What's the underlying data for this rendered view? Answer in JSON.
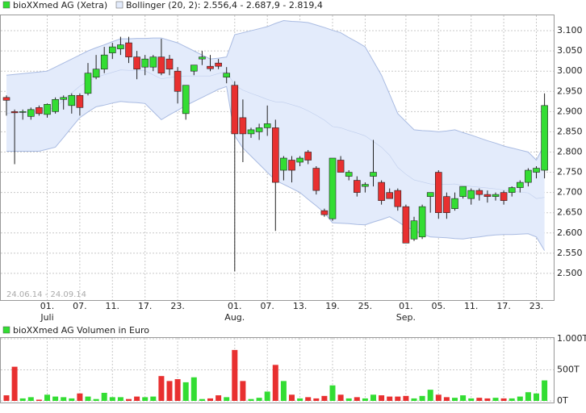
{
  "chart_data": [
    {
      "type": "candlestick",
      "date_range": "24.06.14 - 24.09.14",
      "categories": [
        null,
        null,
        null,
        null,
        null,
        "01.",
        null,
        null,
        null,
        "07.",
        null,
        null,
        null,
        "11.",
        null,
        null,
        null,
        "17.",
        null,
        null,
        null,
        "23.",
        null,
        null,
        null,
        null,
        null,
        null,
        "01.",
        null,
        null,
        null,
        "07.",
        null,
        null,
        null,
        "13.",
        null,
        null,
        null,
        "19.",
        null,
        null,
        null,
        "25.",
        null,
        null,
        null,
        null,
        "01.",
        null,
        null,
        null,
        "05.",
        null,
        null,
        null,
        "11.",
        null,
        null,
        null,
        "17.",
        null,
        null,
        null,
        "23.",
        null
      ],
      "months": [
        null,
        null,
        null,
        null,
        null,
        "Juli",
        null,
        null,
        null,
        null,
        null,
        null,
        null,
        null,
        null,
        null,
        null,
        null,
        null,
        null,
        null,
        null,
        null,
        null,
        null,
        null,
        null,
        null,
        "Aug.",
        null,
        null,
        null,
        null,
        null,
        null,
        null,
        null,
        null,
        null,
        null,
        null,
        null,
        null,
        null,
        null,
        null,
        null,
        null,
        null,
        "Sep.",
        null,
        null,
        null,
        null,
        null,
        null,
        null,
        null,
        null,
        null,
        null,
        null,
        null,
        null,
        null,
        null,
        null
      ],
      "series": [
        {
          "name": "bioXXmed AG (Xetra)",
          "color": "#33dd33",
          "down_color": "#e83030",
          "open": [
            2935,
            2900,
            2898,
            2888,
            2910,
            2893,
            2900,
            2930,
            2915,
            2940,
            2945,
            2985,
            3005,
            3045,
            3055,
            3070,
            3035,
            3010,
            3010,
            3035,
            3030,
            3000,
            2895,
            3000,
            3030,
            3012,
            3020,
            2985,
            2965,
            2885,
            2845,
            2850,
            2860,
            2860,
            2755,
            2780,
            2775,
            2800,
            2760,
            2655,
            2635,
            2780,
            2740,
            2730,
            2715,
            2740,
            2725,
            2700,
            2705,
            2665,
            2585,
            2590,
            2690,
            2750,
            2690,
            2660,
            2690,
            2685,
            2705,
            2695,
            2690,
            2700,
            2700,
            2712,
            2725,
            2750,
            2755
          ],
          "high": [
            2940,
            2905,
            2905,
            2910,
            2915,
            2920,
            2935,
            2940,
            2945,
            2945,
            3020,
            3040,
            3060,
            3070,
            3085,
            3085,
            3050,
            3040,
            3040,
            3080,
            3040,
            3010,
            2965,
            3015,
            3050,
            3040,
            3030,
            3010,
            2975,
            2930,
            2860,
            2870,
            2915,
            2880,
            2790,
            2790,
            2790,
            2805,
            2765,
            2660,
            2785,
            2790,
            2755,
            2740,
            2725,
            2830,
            2730,
            2710,
            2710,
            2670,
            2640,
            2670,
            2700,
            2755,
            2700,
            2700,
            2715,
            2710,
            2710,
            2705,
            2700,
            2705,
            2715,
            2730,
            2760,
            2765,
            2945
          ],
          "low": [
            2890,
            2770,
            2880,
            2880,
            2890,
            2885,
            2895,
            2905,
            2895,
            2890,
            2940,
            2980,
            2995,
            3030,
            3040,
            3020,
            2980,
            2990,
            3000,
            2990,
            2990,
            2920,
            2880,
            2990,
            3015,
            3000,
            3005,
            2970,
            2505,
            2775,
            2835,
            2830,
            2840,
            2605,
            2730,
            2725,
            2765,
            2770,
            2695,
            2640,
            2630,
            2750,
            2730,
            2690,
            2700,
            2715,
            2670,
            2685,
            2655,
            2575,
            2580,
            2585,
            2650,
            2635,
            2635,
            2655,
            2685,
            2670,
            2680,
            2675,
            2680,
            2670,
            2690,
            2700,
            2715,
            2735,
            2735
          ],
          "close": [
            2928,
            2897,
            2900,
            2905,
            2895,
            2918,
            2930,
            2935,
            2940,
            2910,
            2995,
            3005,
            3040,
            3060,
            3065,
            3035,
            3005,
            3030,
            3035,
            2995,
            3005,
            2950,
            2965,
            3015,
            3035,
            3006,
            3012,
            2995,
            2845,
            2845,
            2855,
            2860,
            2870,
            2725,
            2785,
            2755,
            2785,
            2780,
            2705,
            2645,
            2785,
            2750,
            2750,
            2700,
            2720,
            2750,
            2680,
            2685,
            2665,
            2575,
            2630,
            2665,
            2700,
            2650,
            2650,
            2685,
            2715,
            2705,
            2695,
            2690,
            2695,
            2680,
            2712,
            2725,
            2755,
            2760,
            2915
          ]
        }
      ],
      "bands": {
        "name": "Bollinger (20, 2): 2.556,4 - 2.687,9 - 2.819,4",
        "color": "#e3ebfb",
        "line_color": "#a9bbe2",
        "upper": [
          2990,
          2992,
          2994,
          2996,
          2998,
          3000,
          3010,
          3020,
          3030,
          3040,
          3050,
          3058,
          3065,
          3073,
          3080,
          3080,
          3081,
          3081,
          3082,
          3082,
          3076,
          3070,
          3060,
          3050,
          3040,
          3030,
          3032,
          3035,
          3090,
          3095,
          3100,
          3105,
          3110,
          3118,
          3125,
          3123,
          3122,
          3120,
          3114,
          3108,
          3101,
          3095,
          3083,
          3072,
          3060,
          3025,
          2990,
          2943,
          2895,
          2875,
          2855,
          2853,
          2852,
          2850,
          2852,
          2855,
          2848,
          2842,
          2835,
          2828,
          2822,
          2815,
          2810,
          2805,
          2800,
          2780,
          2819.4
        ],
        "middle": [
          2896,
          2897,
          2898,
          2899,
          2900,
          2904,
          2911,
          2928,
          2946,
          2963,
          2975,
          2985,
          2991,
          2997,
          3003,
          3002,
          3002,
          3001,
          2991,
          2981,
          2984,
          2987,
          2988,
          2988,
          2988,
          2988,
          2994,
          2999,
          2965,
          2953,
          2945,
          2938,
          2930,
          2924,
          2923,
          2917,
          2911,
          2902,
          2891,
          2879,
          2863,
          2860,
          2853,
          2847,
          2840,
          2826,
          2812,
          2792,
          2762,
          2745,
          2731,
          2726,
          2721,
          2720,
          2720,
          2721,
          2717,
          2715,
          2713,
          2711,
          2709,
          2706,
          2703,
          2701,
          2699,
          2685,
          2687.9
        ],
        "lower": [
          2802,
          2802,
          2802,
          2802,
          2802,
          2807,
          2812,
          2836,
          2861,
          2885,
          2899,
          2912,
          2916,
          2921,
          2925,
          2923,
          2922,
          2920,
          2900,
          2880,
          2892,
          2903,
          2915,
          2925,
          2935,
          2945,
          2955,
          2962,
          2840,
          2810,
          2790,
          2770,
          2750,
          2730,
          2720,
          2710,
          2700,
          2683,
          2667,
          2650,
          2625,
          2624,
          2623,
          2621,
          2620,
          2627,
          2633,
          2640,
          2628,
          2615,
          2607,
          2598,
          2590,
          2589,
          2588,
          2586,
          2585,
          2588,
          2590,
          2593,
          2595,
          2596,
          2596,
          2597,
          2598,
          2590,
          2556.4
        ]
      },
      "ylim": [
        2434,
        3140
      ],
      "yticks": [
        {
          "value": 2500,
          "label": "2.500"
        },
        {
          "value": 2550,
          "label": "2.550"
        },
        {
          "value": 2600,
          "label": "2.600"
        },
        {
          "value": 2650,
          "label": "2.650"
        },
        {
          "value": 2700,
          "label": "2.700"
        },
        {
          "value": 2750,
          "label": "2.750"
        },
        {
          "value": 2800,
          "label": "2.800"
        },
        {
          "value": 2850,
          "label": "2.850"
        },
        {
          "value": 2900,
          "label": "2.900"
        },
        {
          "value": 2950,
          "label": "2.950"
        },
        {
          "value": 3000,
          "label": "3.000"
        },
        {
          "value": 3050,
          "label": "3.050"
        },
        {
          "value": 3100,
          "label": "3.100"
        }
      ],
      "grid": true
    },
    {
      "type": "bar",
      "title": "bioXXmed AG Volumen in Euro",
      "color": "#33dd33",
      "values": [
        90,
        550,
        40,
        60,
        20,
        100,
        70,
        60,
        40,
        120,
        70,
        30,
        130,
        60,
        60,
        30,
        70,
        60,
        70,
        400,
        320,
        350,
        300,
        380,
        30,
        40,
        90,
        60,
        820,
        320,
        30,
        50,
        150,
        580,
        320,
        100,
        40,
        60,
        40,
        80,
        250,
        100,
        40,
        60,
        40,
        100,
        90,
        70,
        70,
        80,
        40,
        80,
        180,
        100,
        60,
        50,
        90,
        40,
        50,
        40,
        50,
        40,
        40,
        70,
        140,
        120,
        330
      ],
      "ylim": [
        0,
        1000
      ],
      "yticks": [
        {
          "value": 0,
          "label": "0T"
        },
        {
          "value": 500,
          "label": "500T"
        },
        {
          "value": 1000,
          "label": "1.000T"
        }
      ],
      "grid": true
    }
  ]
}
